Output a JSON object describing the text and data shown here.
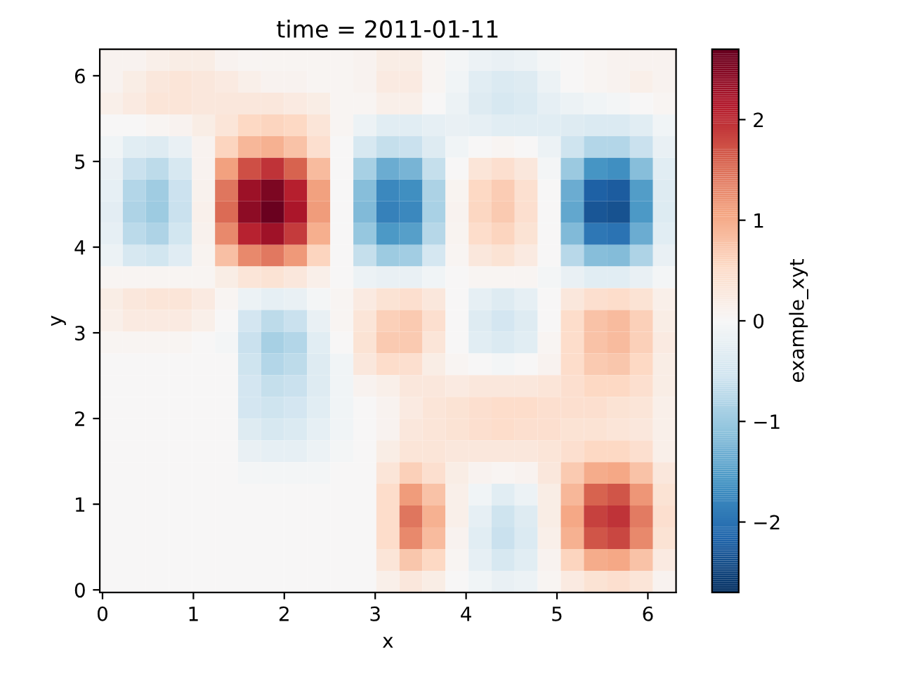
{
  "chart_data": {
    "type": "heatmap",
    "title": "time = 2011-01-11",
    "xlabel": "x",
    "ylabel": "y",
    "clabel": "example_xyt",
    "xlim": [
      -0.03,
      6.31
    ],
    "ylim": [
      -0.03,
      6.31
    ],
    "xticks": [
      0,
      1,
      2,
      3,
      4,
      5,
      6
    ],
    "yticks": [
      0,
      1,
      2,
      3,
      4,
      5,
      6
    ],
    "clim": [
      -2.7,
      2.7
    ],
    "cticks": [
      {
        "value": -2,
        "label": "−2"
      },
      {
        "value": -1,
        "label": "−1"
      },
      0,
      1,
      2
    ],
    "colors": [
      "#053061",
      "#2166ac",
      "#4393c3",
      "#92c5de",
      "#d1e5f0",
      "#f7f7f7",
      "#fddbc7",
      "#f4a582",
      "#d6604d",
      "#b2182b",
      "#67001f"
    ],
    "grid": false,
    "cells": [
      [
        0.1,
        0.1,
        0.15,
        0.2,
        0.2,
        0.1,
        0.05,
        0.05,
        0.05,
        0.05,
        0.05,
        0.1,
        0.2,
        0.2,
        0.05,
        -0.05,
        -0.15,
        -0.2,
        -0.15,
        -0.05,
        0.0,
        0.05,
        0.1,
        0.1,
        0.1
      ],
      [
        0.1,
        0.2,
        0.3,
        0.35,
        0.3,
        0.25,
        0.15,
        0.1,
        0.1,
        0.05,
        0.05,
        0.1,
        0.25,
        0.25,
        0.05,
        -0.1,
        -0.3,
        -0.4,
        -0.35,
        -0.15,
        0.0,
        0.05,
        0.1,
        0.15,
        0.1
      ],
      [
        0.15,
        0.25,
        0.35,
        0.35,
        0.3,
        0.3,
        0.3,
        0.3,
        0.25,
        0.2,
        0.05,
        0.05,
        0.15,
        0.15,
        0.0,
        -0.15,
        -0.35,
        -0.45,
        -0.4,
        -0.25,
        -0.15,
        -0.1,
        -0.05,
        0.0,
        0.05
      ],
      [
        0.0,
        0.0,
        0.05,
        0.1,
        0.2,
        0.35,
        0.55,
        0.6,
        0.55,
        0.35,
        0.05,
        -0.15,
        -0.3,
        -0.3,
        -0.25,
        -0.2,
        -0.25,
        -0.3,
        -0.3,
        -0.3,
        -0.35,
        -0.4,
        -0.4,
        -0.3,
        -0.1
      ],
      [
        -0.1,
        -0.3,
        -0.35,
        -0.2,
        0.1,
        0.6,
        0.9,
        0.95,
        0.8,
        0.45,
        0.0,
        -0.45,
        -0.65,
        -0.6,
        -0.35,
        -0.1,
        0.0,
        0.05,
        0.0,
        -0.15,
        -0.55,
        -0.8,
        -0.8,
        -0.6,
        -0.2
      ],
      [
        -0.2,
        -0.6,
        -0.7,
        -0.45,
        0.1,
        1.1,
        1.75,
        1.95,
        1.6,
        0.85,
        0.0,
        -0.9,
        -1.35,
        -1.25,
        -0.65,
        0.0,
        0.35,
        0.45,
        0.3,
        -0.05,
        -1.0,
        -1.6,
        -1.65,
        -1.15,
        -0.3
      ],
      [
        -0.25,
        -0.8,
        -0.95,
        -0.57,
        0.12,
        1.45,
        2.3,
        2.55,
        2.1,
        1.1,
        0.0,
        -1.15,
        -1.75,
        -1.65,
        -0.85,
        0.08,
        0.55,
        0.68,
        0.43,
        0.0,
        -1.35,
        -2.2,
        -2.25,
        -1.5,
        -0.35
      ],
      [
        -0.28,
        -0.84,
        -0.98,
        -0.6,
        0.13,
        1.52,
        2.42,
        2.66,
        2.2,
        1.14,
        0.0,
        -1.2,
        -1.82,
        -1.73,
        -0.88,
        0.09,
        0.57,
        0.71,
        0.45,
        0.0,
        -1.4,
        -2.3,
        -2.35,
        -1.55,
        -0.37
      ],
      [
        -0.24,
        -0.72,
        -0.84,
        -0.51,
        0.11,
        1.3,
        2.07,
        2.28,
        1.89,
        0.98,
        0.0,
        -1.04,
        -1.56,
        -1.49,
        -0.76,
        0.08,
        0.49,
        0.61,
        0.38,
        0.0,
        -1.2,
        -1.95,
        -2.0,
        -1.35,
        -0.31
      ],
      [
        -0.15,
        -0.45,
        -0.52,
        -0.32,
        0.07,
        0.81,
        1.29,
        1.42,
        1.18,
        0.61,
        0.0,
        -0.65,
        -0.98,
        -0.93,
        -0.47,
        0.05,
        0.31,
        0.38,
        0.24,
        0.0,
        -0.74,
        -1.14,
        -1.18,
        -0.83,
        -0.2
      ],
      [
        0.05,
        0.05,
        0.05,
        0.05,
        0.05,
        0.2,
        0.35,
        0.4,
        0.3,
        0.15,
        0.0,
        -0.15,
        -0.2,
        -0.2,
        -0.1,
        0.0,
        0.05,
        0.05,
        0.05,
        -0.05,
        -0.2,
        -0.3,
        -0.3,
        -0.2,
        -0.05
      ],
      [
        0.2,
        0.3,
        0.35,
        0.35,
        0.25,
        0.05,
        -0.15,
        -0.25,
        -0.2,
        -0.05,
        0.05,
        0.25,
        0.4,
        0.45,
        0.3,
        0.0,
        -0.25,
        -0.35,
        -0.25,
        0.0,
        0.3,
        0.45,
        0.5,
        0.4,
        0.15
      ],
      [
        0.15,
        0.25,
        0.25,
        0.25,
        0.15,
        0.0,
        -0.5,
        -0.7,
        -0.6,
        -0.2,
        0.05,
        0.35,
        0.65,
        0.7,
        0.45,
        0.0,
        -0.35,
        -0.5,
        -0.35,
        0.0,
        0.5,
        0.8,
        0.85,
        0.65,
        0.2
      ],
      [
        0.05,
        0.05,
        0.05,
        0.05,
        0.0,
        -0.05,
        -0.6,
        -0.9,
        -0.8,
        -0.3,
        0.0,
        0.4,
        0.7,
        0.7,
        0.35,
        0.0,
        -0.3,
        -0.4,
        -0.3,
        0.05,
        0.5,
        0.8,
        0.85,
        0.65,
        0.25
      ],
      [
        0.0,
        0.0,
        0.0,
        0.0,
        0.0,
        0.0,
        -0.55,
        -0.8,
        -0.7,
        -0.35,
        -0.1,
        0.3,
        0.5,
        0.45,
        0.2,
        0.05,
        0.0,
        -0.05,
        0.0,
        0.1,
        0.5,
        0.7,
        0.75,
        0.55,
        0.2
      ],
      [
        0.0,
        0.0,
        0.0,
        0.0,
        0.0,
        0.0,
        -0.5,
        -0.65,
        -0.6,
        -0.35,
        -0.1,
        0.1,
        0.15,
        0.3,
        0.3,
        0.25,
        0.3,
        0.3,
        0.3,
        0.35,
        0.45,
        0.55,
        0.55,
        0.45,
        0.2
      ],
      [
        0.0,
        0.0,
        0.0,
        0.0,
        0.0,
        0.0,
        -0.5,
        -0.55,
        -0.5,
        -0.3,
        -0.1,
        0.0,
        0.1,
        0.25,
        0.35,
        0.4,
        0.45,
        0.5,
        0.5,
        0.45,
        0.45,
        0.45,
        0.4,
        0.35,
        0.15
      ],
      [
        0.0,
        0.0,
        0.0,
        0.0,
        0.0,
        0.0,
        -0.35,
        -0.45,
        -0.4,
        -0.25,
        -0.1,
        0.0,
        0.1,
        0.3,
        0.35,
        0.4,
        0.45,
        0.5,
        0.45,
        0.45,
        0.4,
        0.4,
        0.35,
        0.3,
        0.15
      ],
      [
        0.0,
        0.0,
        0.0,
        0.0,
        0.0,
        0.0,
        -0.2,
        -0.25,
        -0.25,
        -0.15,
        -0.05,
        0.0,
        0.2,
        0.35,
        0.35,
        0.3,
        0.3,
        0.3,
        0.3,
        0.35,
        0.45,
        0.55,
        0.55,
        0.45,
        0.15
      ],
      [
        0.0,
        0.0,
        0.0,
        0.0,
        0.0,
        0.0,
        -0.05,
        -0.05,
        -0.05,
        -0.05,
        0.0,
        0.0,
        0.35,
        0.65,
        0.45,
        0.2,
        0.1,
        0.05,
        0.1,
        0.3,
        0.7,
        1.0,
        1.05,
        0.8,
        0.3
      ],
      [
        0.0,
        0.0,
        0.0,
        0.0,
        0.0,
        0.0,
        0.0,
        0.0,
        0.0,
        0.0,
        0.0,
        0.0,
        0.5,
        1.15,
        0.8,
        0.15,
        -0.1,
        -0.3,
        -0.15,
        0.2,
        0.9,
        1.6,
        1.7,
        1.2,
        0.4
      ],
      [
        0.0,
        0.0,
        0.0,
        0.0,
        0.0,
        0.0,
        0.0,
        0.0,
        0.0,
        0.0,
        0.0,
        0.0,
        0.5,
        1.45,
        0.95,
        0.15,
        -0.25,
        -0.55,
        -0.35,
        0.2,
        1.05,
        1.85,
        1.95,
        1.4,
        0.45
      ],
      [
        0.0,
        0.0,
        0.0,
        0.0,
        0.0,
        0.0,
        0.0,
        0.0,
        0.0,
        0.0,
        0.0,
        0.0,
        0.5,
        1.3,
        0.85,
        0.1,
        -0.3,
        -0.6,
        -0.4,
        0.15,
        0.95,
        1.7,
        1.8,
        1.3,
        0.4
      ],
      [
        0.0,
        0.0,
        0.0,
        0.0,
        0.0,
        0.0,
        0.0,
        0.0,
        0.0,
        0.0,
        0.0,
        0.0,
        0.35,
        0.75,
        0.55,
        0.05,
        -0.25,
        -0.45,
        -0.3,
        0.1,
        0.6,
        1.0,
        1.05,
        0.8,
        0.25
      ],
      [
        0.0,
        0.0,
        0.0,
        0.0,
        0.0,
        0.0,
        0.0,
        0.0,
        0.0,
        0.0,
        0.0,
        0.0,
        0.15,
        0.3,
        0.2,
        0.0,
        -0.1,
        -0.2,
        -0.15,
        0.05,
        0.25,
        0.4,
        0.45,
        0.35,
        0.1
      ]
    ]
  }
}
